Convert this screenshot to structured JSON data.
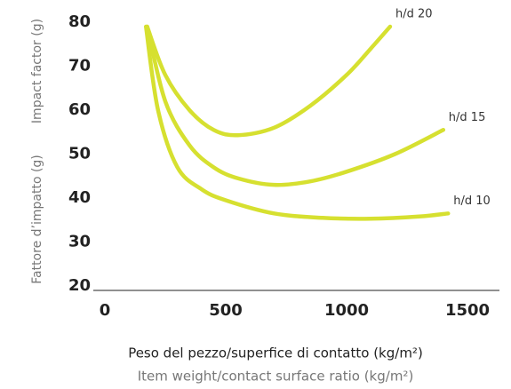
{
  "chart_data": {
    "type": "line",
    "ylabel": [
      "Fattore d’impatto (g)",
      "Impact factor (g)"
    ],
    "xlabel": [
      "Peso del pezzo/superfice di contatto (kg/m²)",
      "Item weight/contact surface ratio (kg/m²)"
    ],
    "xlim": [
      0,
      1500
    ],
    "xticks": [
      0,
      500,
      1000,
      1500
    ],
    "ylim": [
      20,
      80
    ],
    "yticks": [
      20,
      30,
      40,
      50,
      60,
      70,
      80
    ],
    "color": "#d6e030",
    "series": [
      {
        "name": "h/d 20",
        "x": [
          175,
          250,
          350,
          450,
          550,
          700,
          850,
          1000,
          1100,
          1180
        ],
        "values": [
          79,
          68,
          60,
          55.5,
          54.3,
          56,
          61,
          68,
          74,
          79
        ]
      },
      {
        "name": "h/d 15",
        "x": [
          175,
          250,
          350,
          450,
          550,
          700,
          850,
          1000,
          1200,
          1400
        ],
        "values": [
          79,
          62,
          52,
          47,
          44.5,
          43,
          43.8,
          46,
          50,
          55.5
        ]
      },
      {
        "name": "h/d 10",
        "x": [
          170,
          220,
          300,
          400,
          500,
          700,
          900,
          1100,
          1300,
          1420
        ],
        "values": [
          79,
          60,
          47,
          42,
          39.5,
          36.5,
          35.5,
          35.3,
          35.8,
          36.5
        ]
      }
    ]
  }
}
